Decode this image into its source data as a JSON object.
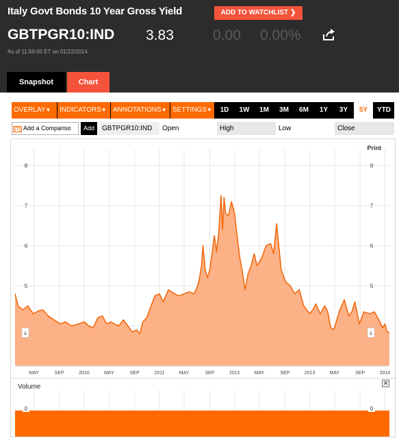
{
  "header": {
    "title": "Italy Govt Bonds 10 Year Gross Yield",
    "watchlist_label": "ADD TO WATCHLIST ❯",
    "ticker": "GBTPGR10:IND",
    "price": "3.83",
    "change": "0.00",
    "change_pct": "0.00%",
    "as_of": "As of 11:59:00 ET on 01/22/2014."
  },
  "tabs": {
    "snapshot": "Snapshot",
    "chart": "Chart"
  },
  "toolbar": {
    "menus": [
      "OVERLAY",
      "INDICATORS",
      "ANNOTATIONS",
      "SETTINGS"
    ],
    "menu_arrow": "▼",
    "ranges": [
      "1D",
      "1W",
      "1M",
      "3M",
      "6M",
      "1Y",
      "3Y",
      "5Y",
      "YTD"
    ],
    "active_range": "5Y"
  },
  "fields": {
    "compare_help": "[?]",
    "compare_placeholder": "Add a Compariso",
    "add_label": "Add",
    "symbol": "GBTPGR10:IND",
    "open": "Open",
    "high": "High",
    "low": "Low",
    "close": "Close"
  },
  "chart_labels": {
    "print": "Print",
    "volume": "Volume",
    "close_icon": "✕"
  },
  "colors": {
    "accent": "#ff6a00",
    "watchlist": "#f4533b",
    "area_fill": "#fdb186",
    "line": "#f26a10",
    "header_bg": "#2c2c2c"
  },
  "chart_data": {
    "type": "area",
    "title": "",
    "xlabel": "",
    "ylabel": "",
    "ylim": [
      3,
      8.4
    ],
    "y_ticks": [
      4,
      5,
      6,
      7,
      8
    ],
    "x_ticks": [
      {
        "date": "2009.33",
        "label": "MAY"
      },
      {
        "date": "2009.67",
        "label": "SEP"
      },
      {
        "date": "2010.00",
        "label": "2010"
      },
      {
        "date": "2010.33",
        "label": "MAY"
      },
      {
        "date": "2010.67",
        "label": "SEP"
      },
      {
        "date": "2011.00",
        "label": "2011"
      },
      {
        "date": "2011.33",
        "label": "MAY"
      },
      {
        "date": "2011.67",
        "label": "SEP"
      },
      {
        "date": "2012.00",
        "label": "2012"
      },
      {
        "date": "2012.33",
        "label": "MAY"
      },
      {
        "date": "2012.67",
        "label": "SEP"
      },
      {
        "date": "2013.00",
        "label": "2013"
      },
      {
        "date": "2013.33",
        "label": "MAY"
      },
      {
        "date": "2013.67",
        "label": "SEP"
      },
      {
        "date": "2014.00",
        "label": "2014"
      }
    ],
    "xlim": [
      2009.08,
      2014.06
    ],
    "series": [
      {
        "x": [
          2009.08,
          2009.12,
          2009.18,
          2009.25,
          2009.32,
          2009.4,
          2009.45,
          2009.52,
          2009.6,
          2009.68,
          2009.75,
          2009.83,
          2009.92,
          2010.0,
          2010.06,
          2010.12,
          2010.18,
          2010.24,
          2010.3,
          2010.36,
          2010.4,
          2010.46,
          2010.52,
          2010.58,
          2010.64,
          2010.7,
          2010.74,
          2010.78,
          2010.83,
          2010.86,
          2010.9,
          2010.94,
          2011.0,
          2011.05,
          2011.12,
          2011.2,
          2011.26,
          2011.33,
          2011.4,
          2011.46,
          2011.5,
          2011.53,
          2011.56,
          2011.58,
          2011.61,
          2011.64,
          2011.67,
          2011.7,
          2011.73,
          2011.76,
          2011.79,
          2011.82,
          2011.84,
          2011.86,
          2011.88,
          2011.92,
          2011.96,
          2012.0,
          2012.03,
          2012.07,
          2012.1,
          2012.14,
          2012.18,
          2012.22,
          2012.26,
          2012.3,
          2012.36,
          2012.42,
          2012.48,
          2012.52,
          2012.56,
          2012.62,
          2012.68,
          2012.74,
          2012.8,
          2012.86,
          2012.92,
          2013.0,
          2013.04,
          2013.08,
          2013.14,
          2013.2,
          2013.24,
          2013.28,
          2013.32,
          2013.36,
          2013.4,
          2013.46,
          2013.52,
          2013.56,
          2013.6,
          2013.66,
          2013.72,
          2013.8,
          2013.86,
          2013.92,
          2013.97,
          2014.0,
          2014.03,
          2014.06
        ],
        "y": [
          4.8,
          4.5,
          4.4,
          4.5,
          4.3,
          4.38,
          4.4,
          4.25,
          4.15,
          4.05,
          4.1,
          4.0,
          4.05,
          4.1,
          4.0,
          3.95,
          4.2,
          4.25,
          4.05,
          4.1,
          4.05,
          4.0,
          4.15,
          4.0,
          3.85,
          3.9,
          3.8,
          4.1,
          4.2,
          4.35,
          4.55,
          4.75,
          4.8,
          4.6,
          4.9,
          4.8,
          4.75,
          4.8,
          4.85,
          4.8,
          4.95,
          5.15,
          5.5,
          6.0,
          5.4,
          5.2,
          5.4,
          5.8,
          6.25,
          5.85,
          6.35,
          7.25,
          6.4,
          7.2,
          6.8,
          6.75,
          7.1,
          6.8,
          6.3,
          5.7,
          5.4,
          4.9,
          5.3,
          5.5,
          5.8,
          5.5,
          5.7,
          6.0,
          6.05,
          5.8,
          6.55,
          5.4,
          5.1,
          5.0,
          4.8,
          4.9,
          4.5,
          4.3,
          4.4,
          4.55,
          4.3,
          4.5,
          4.35,
          3.95,
          3.9,
          4.15,
          4.4,
          4.65,
          4.25,
          4.35,
          4.6,
          4.05,
          4.35,
          4.3,
          4.35,
          4.15,
          3.95,
          4.05,
          3.85,
          3.83
        ]
      }
    ],
    "volume": {
      "axis_value": "0"
    },
    "legend": "none",
    "grid": true
  }
}
